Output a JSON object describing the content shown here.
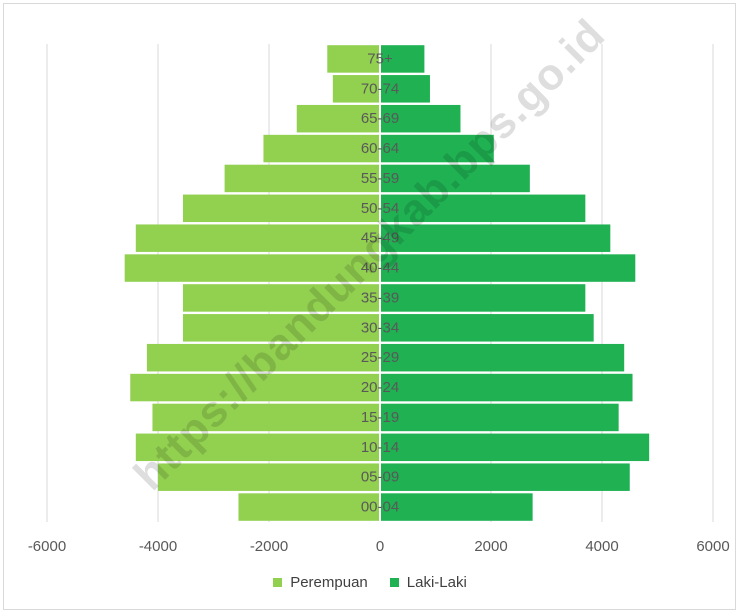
{
  "chart_data": {
    "type": "bar",
    "orientation": "horizontal",
    "title": "",
    "xlabel": "",
    "ylabel": "",
    "xlim": [
      -6000,
      6000
    ],
    "x_ticks": [
      -6000,
      -4000,
      -2000,
      0,
      2000,
      4000,
      6000
    ],
    "x_tick_labels": [
      "-6000",
      "-4000",
      "-2000",
      "0",
      "2000",
      "4000",
      "6000"
    ],
    "grid": "vertical",
    "legend_position": "bottom",
    "categories": [
      "00-04",
      "05-09",
      "10-14",
      "15-19",
      "20-24",
      "25-29",
      "30-34",
      "35-39",
      "40-44",
      "45-49",
      "50-54",
      "55-59",
      "60-64",
      "65-69",
      "70-74",
      "75+"
    ],
    "series": [
      {
        "name": "Perempuan",
        "color": "#92d050",
        "values": [
          -2550,
          -4000,
          -4400,
          -4100,
          -4500,
          -4200,
          -3550,
          -3550,
          -4600,
          -4400,
          -3550,
          -2800,
          -2100,
          -1500,
          -850,
          -950
        ]
      },
      {
        "name": "Laki-Laki",
        "color": "#1fb152",
        "values": [
          2750,
          4500,
          4850,
          4300,
          4550,
          4400,
          3850,
          3700,
          4600,
          4150,
          3700,
          2700,
          2050,
          1450,
          900,
          800
        ]
      }
    ],
    "watermark": "https://bandungkab.bps.go.id"
  }
}
